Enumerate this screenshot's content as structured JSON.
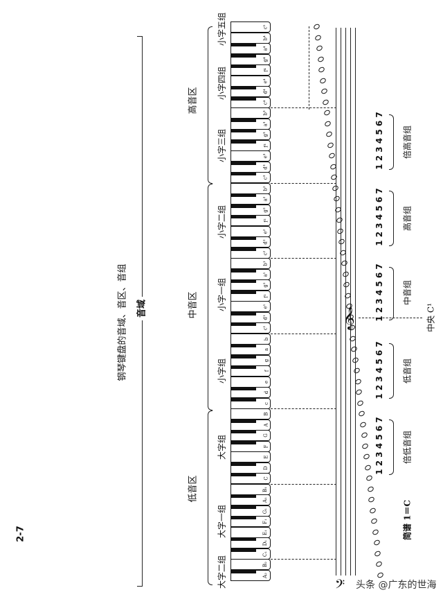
{
  "figure_number": "2-7",
  "title": "钢琴键盘的音域、音区、音组",
  "range_label": "音域",
  "registers": [
    "高音区",
    "中音区",
    "低音区"
  ],
  "groups": [
    "小字五组",
    "小字四组",
    "小字三组",
    "小字二组",
    "小字一组",
    "小字组",
    "大字组",
    "大字一组",
    "大字二组"
  ],
  "white_keys_low_to_high": [
    "A₂",
    "B₂",
    "C₁",
    "D₁",
    "E₁",
    "F₁",
    "G₁",
    "A₁",
    "B₁",
    "C",
    "D",
    "E",
    "F",
    "G",
    "A",
    "B",
    "c",
    "d",
    "e",
    "f",
    "g",
    "a",
    "b",
    "c¹",
    "d¹",
    "e¹",
    "f¹",
    "g¹",
    "a¹",
    "b¹",
    "c²",
    "d²",
    "e²",
    "f²",
    "g²",
    "a²",
    "b²",
    "c³",
    "d³",
    "e³",
    "f³",
    "g³",
    "a³",
    "b³",
    "c⁴",
    "d⁴",
    "e⁴",
    "f⁴",
    "g⁴",
    "a⁴",
    "b⁴",
    "c⁵"
  ],
  "jianpu": {
    "title": "简谱 1＝C",
    "digits": "1 2 3 4 5 6 7",
    "groups": [
      "倍高音组",
      "高音组",
      "中音组",
      "低音组",
      "倍低音组"
    ]
  },
  "middle_c_label": "中央 C¹",
  "watermark": "头条 @广东的世海"
}
